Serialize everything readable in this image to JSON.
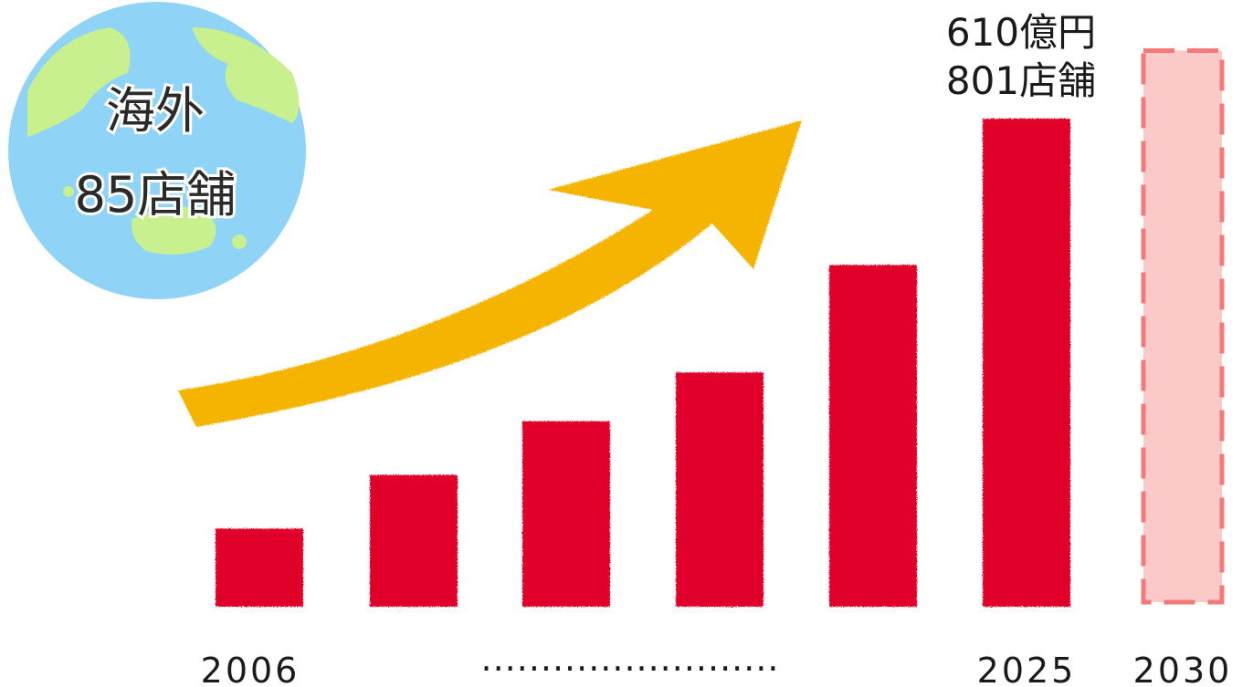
{
  "globe": {
    "line1": "海外",
    "line2": "85店舗",
    "ocean_color": "#8fd3f7",
    "land_color": "#c8f08f"
  },
  "callout": {
    "line1": "610億円",
    "line2": "801店舗"
  },
  "timeline": {
    "ellipsis": "·························"
  },
  "chart_data": {
    "type": "bar",
    "categories": [
      "2006",
      "",
      "",
      "",
      "",
      "2025",
      "2030"
    ],
    "values": [
      16,
      27,
      38,
      48,
      70,
      100,
      113
    ],
    "projected": [
      false,
      false,
      false,
      false,
      false,
      false,
      true
    ],
    "bar_color": "#e0062a",
    "projected_fill": "#fcc9c9",
    "projected_stroke": "#f47a7a",
    "trend_arrow_color": "#f5b400"
  }
}
